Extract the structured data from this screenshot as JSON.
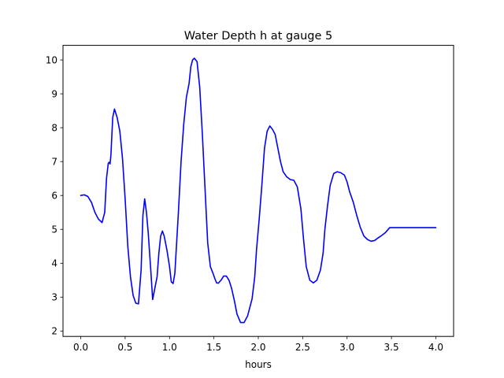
{
  "chart_data": {
    "type": "line",
    "title": "Water Depth h at gauge 5",
    "xlabel": "hours",
    "ylabel": "",
    "xlim": [
      -0.2,
      4.2
    ],
    "ylim": [
      1.84,
      10.43
    ],
    "xticks": [
      0.0,
      0.5,
      1.0,
      1.5,
      2.0,
      2.5,
      3.0,
      3.5,
      4.0
    ],
    "xtick_labels": [
      "0.0",
      "0.5",
      "1.0",
      "1.5",
      "2.0",
      "2.5",
      "3.0",
      "3.5",
      "4.0"
    ],
    "yticks": [
      2,
      3,
      4,
      5,
      6,
      7,
      8,
      9,
      10
    ],
    "ytick_labels": [
      "2",
      "3",
      "4",
      "5",
      "6",
      "7",
      "8",
      "9",
      "10"
    ],
    "grid": false,
    "series": [
      {
        "color": "#0000ff",
        "x": [
          0.0,
          0.04,
          0.08,
          0.12,
          0.16,
          0.2,
          0.24,
          0.27,
          0.29,
          0.31,
          0.32,
          0.33,
          0.34,
          0.36,
          0.38,
          0.41,
          0.44,
          0.47,
          0.5,
          0.53,
          0.56,
          0.59,
          0.62,
          0.65,
          0.68,
          0.7,
          0.72,
          0.74,
          0.76,
          0.79,
          0.81,
          0.83,
          0.86,
          0.88,
          0.9,
          0.92,
          0.94,
          0.97,
          1.0,
          1.02,
          1.04,
          1.06,
          1.08,
          1.1,
          1.13,
          1.16,
          1.19,
          1.22,
          1.24,
          1.26,
          1.28,
          1.31,
          1.34,
          1.37,
          1.4,
          1.43,
          1.46,
          1.49,
          1.51,
          1.53,
          1.55,
          1.58,
          1.61,
          1.64,
          1.67,
          1.7,
          1.73,
          1.76,
          1.8,
          1.84,
          1.88,
          1.93,
          1.96,
          1.98,
          2.01,
          2.04,
          2.07,
          2.1,
          2.13,
          2.16,
          2.19,
          2.22,
          2.25,
          2.28,
          2.32,
          2.36,
          2.4,
          2.44,
          2.48,
          2.51,
          2.54,
          2.58,
          2.62,
          2.66,
          2.7,
          2.73,
          2.75,
          2.78,
          2.81,
          2.85,
          2.89,
          2.93,
          2.97,
          3.0,
          3.03,
          3.07,
          3.11,
          3.15,
          3.19,
          3.23,
          3.27,
          3.31,
          3.34,
          3.38,
          3.43,
          3.48,
          3.53,
          3.58,
          3.63,
          3.68,
          3.72,
          3.76,
          3.8,
          3.84,
          3.88,
          3.92,
          3.96,
          4.0
        ],
        "y": [
          6.0,
          6.02,
          5.97,
          5.8,
          5.5,
          5.3,
          5.2,
          5.5,
          6.5,
          6.95,
          6.98,
          6.93,
          7.2,
          8.3,
          8.55,
          8.3,
          7.9,
          7.1,
          5.9,
          4.5,
          3.6,
          3.05,
          2.82,
          2.8,
          3.8,
          5.4,
          5.9,
          5.5,
          4.9,
          3.75,
          2.93,
          3.2,
          3.6,
          4.3,
          4.8,
          4.95,
          4.8,
          4.4,
          3.9,
          3.45,
          3.4,
          3.7,
          4.6,
          5.5,
          7.0,
          8.1,
          8.9,
          9.3,
          9.8,
          10.0,
          10.05,
          9.95,
          9.2,
          7.8,
          6.2,
          4.6,
          3.9,
          3.7,
          3.55,
          3.42,
          3.41,
          3.5,
          3.62,
          3.62,
          3.5,
          3.25,
          2.9,
          2.5,
          2.25,
          2.25,
          2.45,
          2.95,
          3.6,
          4.4,
          5.3,
          6.3,
          7.4,
          7.9,
          8.05,
          7.95,
          7.8,
          7.4,
          7.0,
          6.7,
          6.55,
          6.47,
          6.45,
          6.25,
          5.6,
          4.7,
          3.9,
          3.5,
          3.42,
          3.5,
          3.8,
          4.3,
          5.0,
          5.7,
          6.3,
          6.65,
          6.7,
          6.67,
          6.6,
          6.4,
          6.1,
          5.8,
          5.4,
          5.05,
          4.8,
          4.7,
          4.65,
          4.67,
          4.73,
          4.8,
          4.9,
          5.05,
          5.05,
          5.05,
          5.05,
          5.05,
          5.05,
          5.05,
          5.05,
          5.05,
          5.05,
          5.05,
          5.05,
          5.05
        ]
      }
    ]
  }
}
